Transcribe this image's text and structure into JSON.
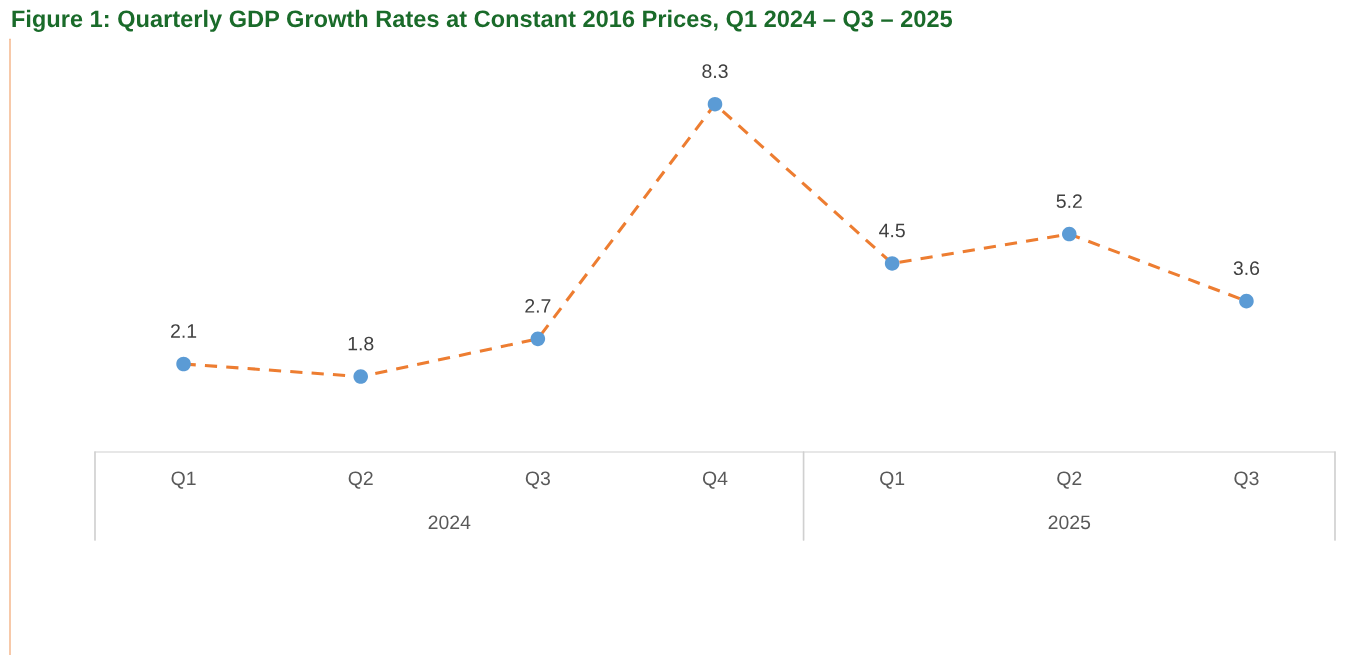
{
  "chart_data": {
    "type": "line",
    "title": "Figure 1: Quarterly GDP Growth Rates at Constant 2016 Prices, Q1 2024 – Q3 – 2025",
    "categories": [
      "Q1",
      "Q2",
      "Q3",
      "Q4",
      "Q1",
      "Q2",
      "Q3"
    ],
    "series": [
      {
        "color": "#ed7d31",
        "colors": [
          "#5b9bd5",
          "#5b9bd5",
          "#5b9bd5",
          "#5b9bd5",
          "#5b9bd5",
          "#5b9bd5",
          "#5b9bd5"
        ],
        "values": [
          2.1,
          1.8,
          2.7,
          8.3,
          4.5,
          5.2,
          3.6
        ]
      }
    ],
    "annotations": [
      "2024",
      "2025"
    ],
    "data_labels": true,
    "marker": "circle",
    "line_style": "dashed",
    "legend": false
  }
}
